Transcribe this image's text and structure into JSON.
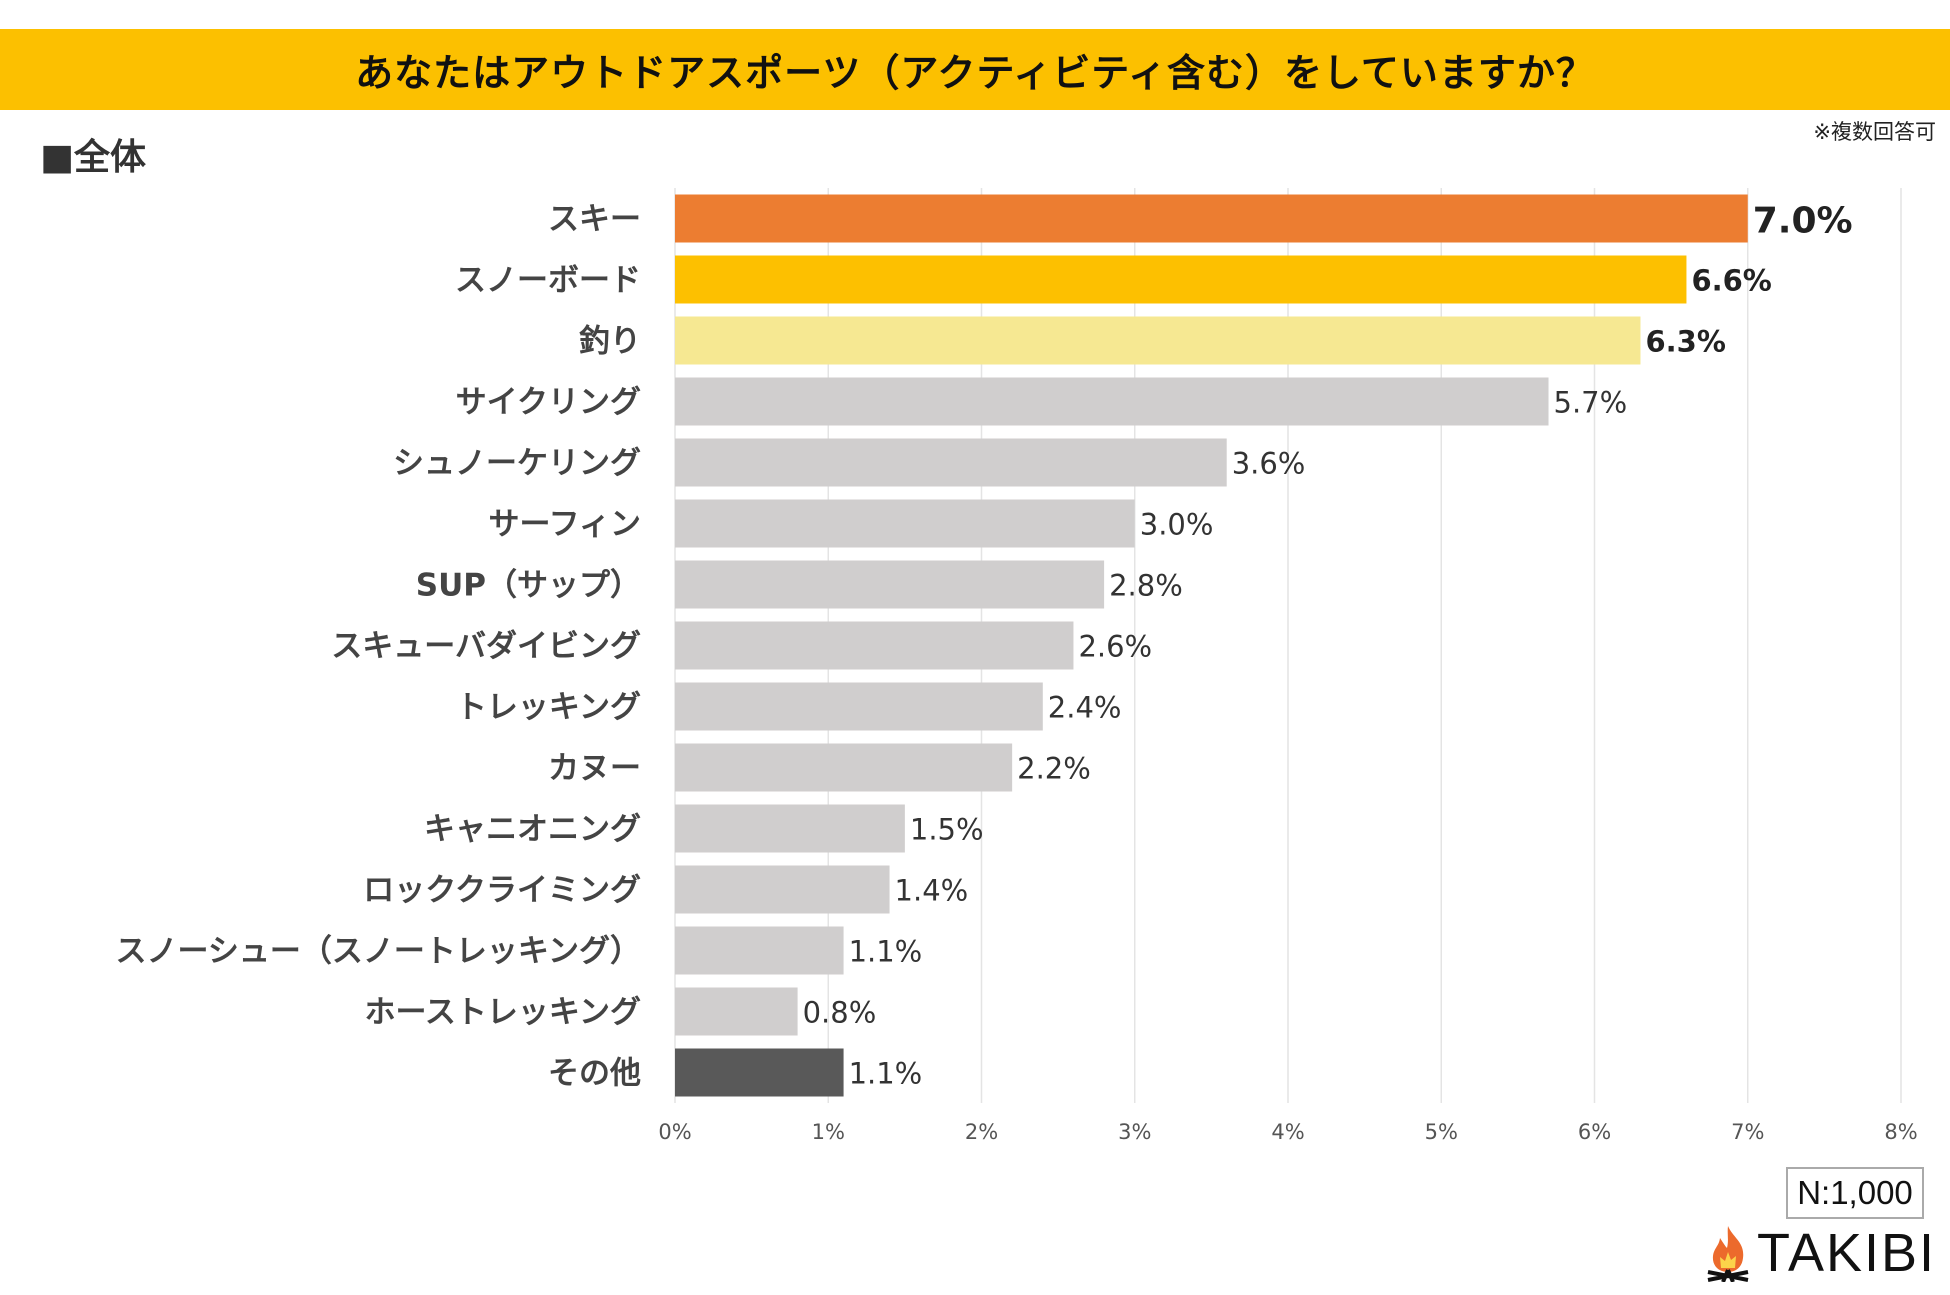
{
  "header": {
    "title": "あなたはアウトドアスポーツ（アクティビティ含む）をしていますか？",
    "section": "■全体",
    "note": "※複数回答可"
  },
  "footer": {
    "sample": "N:1,000",
    "logo": "TAKIBI"
  },
  "colors": {
    "title_bar": "#fcc000",
    "first": "#ec7d31",
    "second": "#fdc000",
    "third": "#f6e892",
    "other": "#d0cece",
    "misc": "#595959"
  },
  "chart_data": {
    "type": "bar",
    "orientation": "horizontal",
    "categories": [
      "スキー",
      "スノーボード",
      "釣り",
      "サイクリング",
      "シュノーケリング",
      "サーフィン",
      "SUP（サップ）",
      "スキューバダイビング",
      "トレッキング",
      "カヌー",
      "キャニオニング",
      "ロッククライミング",
      "スノーシュー（スノートレッキング）",
      "ホーストレッキング",
      "その他"
    ],
    "values": [
      7.0,
      6.6,
      6.3,
      5.7,
      3.6,
      3.0,
      2.8,
      2.6,
      2.4,
      2.2,
      1.5,
      1.4,
      1.1,
      0.8,
      1.1
    ],
    "data_labels": [
      "7.0%",
      "6.6%",
      "6.3%",
      "5.7%",
      "3.6%",
      "3.0%",
      "2.8%",
      "2.6%",
      "2.4%",
      "2.2%",
      "1.5%",
      "1.4%",
      "1.1%",
      "0.8%",
      "1.1%"
    ],
    "bar_colors": [
      "#ec7d31",
      "#fdc000",
      "#f6e892",
      "#d0cece",
      "#d0cece",
      "#d0cece",
      "#d0cece",
      "#d0cece",
      "#d0cece",
      "#d0cece",
      "#d0cece",
      "#d0cece",
      "#d0cece",
      "#d0cece",
      "#595959"
    ],
    "highlighted": [
      true,
      true,
      true,
      false,
      false,
      false,
      false,
      false,
      false,
      false,
      false,
      false,
      false,
      false,
      false
    ],
    "xlim": [
      0,
      8
    ],
    "xticks": [
      "0%",
      "1%",
      "2%",
      "3%",
      "4%",
      "5%",
      "6%",
      "7%",
      "8%"
    ],
    "grid": true,
    "unit": "%"
  }
}
